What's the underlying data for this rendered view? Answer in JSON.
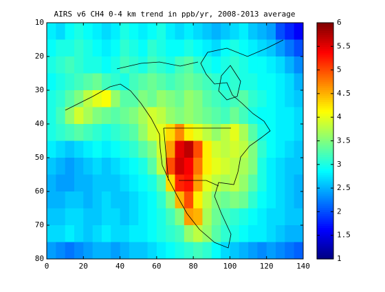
{
  "chart_data": {
    "type": "heatmap",
    "title": "AIRS v6 CH4 0-4 km trend in ppb/yr, 2008-2013 average",
    "colormap": "jet",
    "xbins": [
      0,
      5,
      10,
      15,
      20,
      25,
      30,
      35,
      40,
      45,
      50,
      55,
      60,
      65,
      70,
      75,
      80,
      85,
      90,
      95,
      100,
      105,
      110,
      115,
      120,
      125,
      130,
      135,
      140
    ],
    "ybins": [
      10,
      15,
      20,
      25,
      30,
      35,
      40,
      45,
      50,
      55,
      60,
      65,
      70,
      75,
      80
    ],
    "z": [
      [
        2.8,
        2.7,
        2.9,
        3.0,
        2.9,
        2.8,
        2.7,
        2.8,
        3.0,
        2.9,
        2.8,
        2.9,
        3.0,
        2.8,
        2.7,
        2.8,
        2.7,
        2.6,
        2.5,
        2.6,
        2.7,
        2.8,
        2.6,
        2.5,
        2.4,
        2.0,
        1.8,
        1.6
      ],
      [
        2.9,
        3.0,
        3.0,
        3.1,
        3.0,
        2.9,
        2.8,
        2.9,
        3.1,
        3.0,
        2.9,
        3.1,
        3.0,
        2.9,
        2.9,
        3.0,
        2.9,
        2.8,
        2.7,
        2.9,
        3.0,
        2.9,
        2.8,
        2.7,
        2.6,
        2.4,
        2.2,
        2.0
      ],
      [
        3.0,
        3.1,
        3.2,
        3.1,
        3.0,
        3.0,
        2.9,
        3.0,
        3.2,
        3.1,
        3.0,
        3.2,
        3.1,
        3.0,
        3.2,
        3.3,
        3.1,
        3.0,
        2.9,
        3.0,
        3.1,
        3.0,
        2.9,
        2.9,
        2.8,
        2.7,
        2.5,
        2.3
      ],
      [
        2.9,
        3.0,
        3.1,
        3.2,
        3.3,
        3.4,
        3.2,
        3.1,
        3.0,
        3.2,
        3.3,
        3.4,
        3.3,
        3.2,
        3.3,
        3.4,
        3.3,
        3.2,
        3.1,
        3.0,
        3.1,
        3.0,
        3.0,
        2.9,
        2.9,
        2.8,
        2.7,
        2.5
      ],
      [
        3.0,
        3.1,
        3.3,
        3.5,
        3.8,
        4.0,
        4.1,
        3.6,
        3.3,
        3.3,
        3.5,
        3.4,
        3.6,
        3.5,
        3.4,
        3.6,
        3.5,
        3.3,
        3.2,
        3.1,
        3.2,
        3.3,
        3.1,
        3.0,
        2.9,
        2.8,
        2.7,
        2.6
      ],
      [
        3.0,
        3.2,
        3.6,
        3.9,
        3.7,
        3.5,
        3.4,
        3.3,
        3.4,
        3.5,
        3.7,
        3.9,
        3.8,
        3.6,
        3.5,
        3.6,
        3.5,
        3.4,
        3.3,
        3.2,
        3.4,
        3.2,
        3.0,
        2.9,
        2.9,
        2.8,
        2.8,
        2.7
      ],
      [
        3.0,
        3.1,
        3.2,
        3.3,
        3.2,
        3.1,
        3.0,
        3.1,
        3.2,
        3.3,
        3.6,
        3.9,
        4.0,
        4.3,
        4.7,
        4.2,
        4.0,
        3.8,
        3.6,
        3.8,
        4.0,
        3.7,
        3.3,
        3.0,
        2.9,
        2.8,
        2.8,
        2.7
      ],
      [
        2.8,
        2.7,
        2.6,
        2.7,
        2.8,
        2.9,
        2.8,
        2.9,
        3.0,
        3.1,
        3.3,
        3.5,
        3.9,
        4.6,
        5.5,
        5.7,
        5.0,
        4.2,
        3.9,
        3.8,
        3.9,
        3.8,
        3.5,
        3.1,
        2.9,
        2.8,
        2.7,
        2.6
      ],
      [
        2.6,
        2.5,
        2.4,
        2.5,
        2.6,
        2.7,
        2.6,
        2.7,
        2.8,
        2.9,
        3.0,
        3.3,
        3.8,
        5.0,
        5.6,
        5.4,
        4.8,
        4.2,
        4.0,
        3.9,
        3.8,
        3.7,
        3.5,
        3.0,
        2.8,
        2.7,
        2.6,
        2.6
      ],
      [
        2.5,
        2.4,
        2.4,
        2.5,
        2.5,
        2.6,
        2.6,
        2.6,
        2.7,
        2.8,
        2.9,
        3.0,
        3.3,
        4.3,
        5.2,
        5.3,
        4.6,
        4.0,
        3.8,
        3.7,
        3.8,
        3.6,
        3.3,
        3.0,
        2.8,
        2.7,
        2.6,
        2.5
      ],
      [
        2.5,
        2.5,
        2.6,
        2.6,
        2.5,
        2.6,
        2.7,
        2.6,
        2.6,
        2.7,
        2.8,
        2.9,
        3.1,
        3.5,
        4.5,
        5.0,
        4.2,
        3.8,
        3.5,
        3.4,
        3.5,
        3.4,
        3.1,
        2.9,
        2.8,
        2.7,
        2.6,
        2.5
      ],
      [
        2.6,
        2.6,
        2.7,
        2.7,
        2.6,
        2.6,
        2.7,
        2.7,
        2.6,
        2.7,
        2.8,
        2.9,
        3.0,
        3.2,
        3.5,
        4.6,
        4.5,
        3.7,
        3.4,
        3.2,
        3.1,
        3.0,
        2.9,
        2.8,
        2.7,
        2.7,
        2.6,
        2.6
      ],
      [
        2.7,
        2.7,
        2.8,
        2.7,
        2.6,
        2.7,
        2.8,
        2.7,
        2.7,
        2.8,
        2.8,
        2.9,
        3.0,
        3.1,
        3.2,
        3.6,
        3.8,
        3.6,
        3.3,
        3.1,
        3.0,
        2.9,
        2.8,
        2.8,
        2.7,
        2.6,
        2.5,
        2.5
      ],
      [
        2.4,
        2.3,
        2.2,
        2.3,
        2.4,
        2.5,
        2.5,
        2.4,
        2.5,
        2.6,
        2.6,
        2.7,
        2.8,
        2.9,
        3.0,
        3.1,
        3.2,
        3.1,
        2.9,
        2.7,
        2.6,
        2.5,
        2.4,
        2.3,
        2.4,
        2.3,
        2.2,
        2.1
      ]
    ],
    "xlim": [
      0,
      140
    ],
    "xticks": [
      0,
      20,
      40,
      60,
      80,
      100,
      120,
      140
    ],
    "ylim": [
      10,
      80
    ],
    "yticks": [
      10,
      20,
      30,
      40,
      50,
      60,
      70,
      80
    ],
    "y_reversed": true,
    "clim": [
      1,
      6
    ],
    "cticks": [
      1,
      1.5,
      2,
      2.5,
      3,
      3.5,
      4,
      4.5,
      5,
      5.5,
      6
    ]
  }
}
